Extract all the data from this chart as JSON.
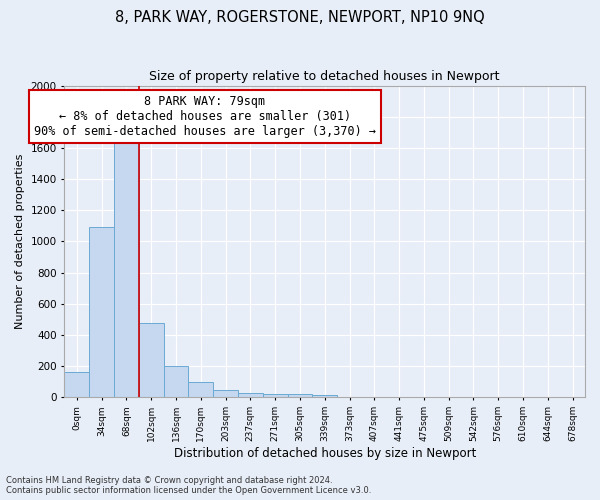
{
  "title": "8, PARK WAY, ROGERSTONE, NEWPORT, NP10 9NQ",
  "subtitle": "Size of property relative to detached houses in Newport",
  "xlabel": "Distribution of detached houses by size in Newport",
  "ylabel": "Number of detached properties",
  "footer_line1": "Contains HM Land Registry data © Crown copyright and database right 2024.",
  "footer_line2": "Contains public sector information licensed under the Open Government Licence v3.0.",
  "bin_labels": [
    "0sqm",
    "34sqm",
    "68sqm",
    "102sqm",
    "136sqm",
    "170sqm",
    "203sqm",
    "237sqm",
    "271sqm",
    "305sqm",
    "339sqm",
    "373sqm",
    "407sqm",
    "441sqm",
    "475sqm",
    "509sqm",
    "542sqm",
    "576sqm",
    "610sqm",
    "644sqm",
    "678sqm"
  ],
  "bar_values": [
    165,
    1095,
    1635,
    480,
    200,
    100,
    45,
    30,
    20,
    20,
    15,
    5,
    5,
    0,
    0,
    0,
    0,
    0,
    0,
    0,
    0
  ],
  "bar_color": "#c5d8f0",
  "bar_edgecolor": "#6aaad4",
  "ylim": [
    0,
    2000
  ],
  "yticks": [
    0,
    200,
    400,
    600,
    800,
    1000,
    1200,
    1400,
    1600,
    1800,
    2000
  ],
  "property_line_x": 2.5,
  "annotation_text_line1": "8 PARK WAY: 79sqm",
  "annotation_text_line2": "← 8% of detached houses are smaller (301)",
  "annotation_text_line3": "90% of semi-detached houses are larger (3,370) →",
  "annotation_box_color": "white",
  "annotation_border_color": "#cc0000",
  "property_line_color": "#cc0000",
  "background_color": "#e8eef8",
  "grid_color": "#ffffff",
  "title_fontsize": 10.5,
  "subtitle_fontsize": 9,
  "annotation_fontsize": 8.5
}
